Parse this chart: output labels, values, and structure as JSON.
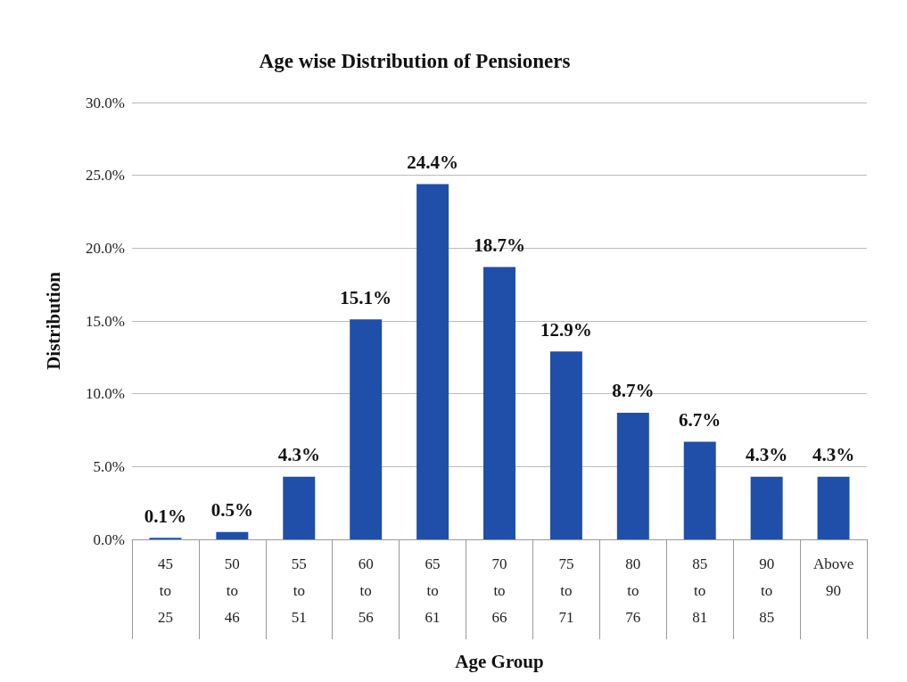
{
  "chart_data": {
    "type": "bar",
    "title": "Age wise Distribution of Pensioners",
    "xlabel": "Age Group",
    "ylabel": "Distribution",
    "categories": [
      "45 to 25",
      "50 to 46",
      "55 to 51",
      "60 to 56",
      "65 to 61",
      "70 to 66",
      "75 to 71",
      "80 to 76",
      "85 to 81",
      "90 to 85",
      "Above 90"
    ],
    "values": [
      0.1,
      0.5,
      4.3,
      15.1,
      24.4,
      18.7,
      12.9,
      8.7,
      6.7,
      4.3,
      4.3
    ],
    "value_labels": [
      "0.1%",
      "0.5%",
      "4.3%",
      "15.1%",
      "24.4%",
      "18.7%",
      "12.9%",
      "8.7%",
      "6.7%",
      "4.3%",
      "4.3%"
    ],
    "color": "#1f4fa8",
    "ylim": [
      0,
      30
    ],
    "yticks": [
      {
        "value": 0,
        "label": "0.0%"
      },
      {
        "value": 5,
        "label": "5.0%"
      },
      {
        "value": 10,
        "label": "10.0%"
      },
      {
        "value": 15,
        "label": "15.0%"
      },
      {
        "value": 20,
        "label": "20.0%"
      },
      {
        "value": 25,
        "label": "25.0%"
      },
      {
        "value": 30,
        "label": "30.0%"
      }
    ],
    "grid": "y"
  }
}
